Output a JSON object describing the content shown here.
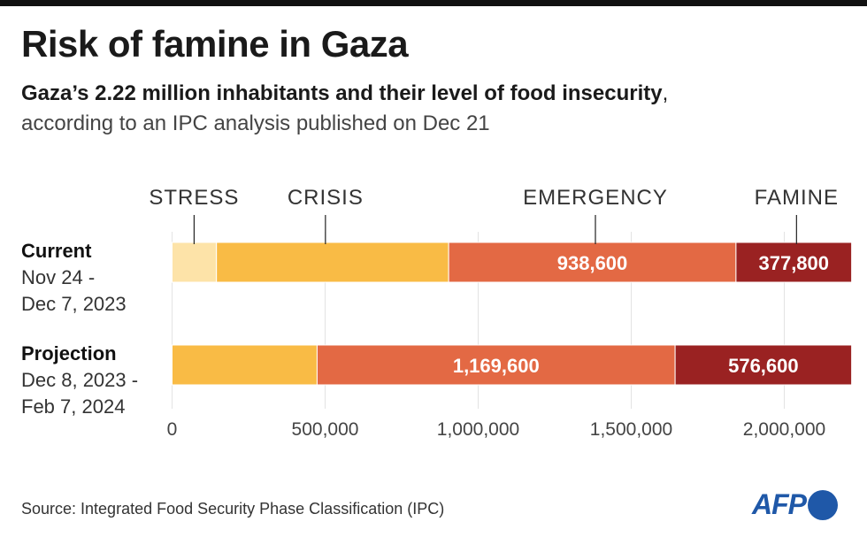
{
  "title": "Risk of famine in Gaza",
  "subtitle_bold": "Gaza’s 2.22 million inhabitants and their level of food insecurity",
  "subtitle_rest": ",",
  "subtitle_line2": "according to an IPC analysis published on Dec 21",
  "source": "Source: Integrated Food Security Phase Classification (IPC)",
  "logo_text": "AFP",
  "colors": {
    "stress": "#fde3a8",
    "crisis": "#f9bb45",
    "emergency": "#e36944",
    "famine": "#9a2222",
    "grid": "#e3e3e3"
  },
  "chart_data": {
    "type": "bar",
    "orientation": "horizontal",
    "stacked": true,
    "categories": [
      {
        "name": "Current",
        "dates_line1": "Nov 24 -",
        "dates_line2": "Dec 7, 2023"
      },
      {
        "name": "Projection",
        "dates_line1": "Dec 8, 2023 -",
        "dates_line2": "Feb 7, 2024"
      }
    ],
    "series": [
      {
        "name": "STRESS",
        "values": [
          145000,
          0
        ],
        "labels": [
          "",
          ""
        ]
      },
      {
        "name": "CRISIS",
        "values": [
          758600,
          473800
        ],
        "labels": [
          "",
          ""
        ]
      },
      {
        "name": "EMERGENCY",
        "values": [
          938600,
          1169600
        ],
        "labels": [
          "938,600",
          "1,169,600"
        ]
      },
      {
        "name": "FAMINE",
        "values": [
          377800,
          576600
        ],
        "labels": [
          "377,800",
          "576,600"
        ]
      }
    ],
    "xlim": [
      0,
      2220000
    ],
    "xticks": [
      0,
      500000,
      1000000,
      1500000,
      2000000
    ],
    "xtick_labels": [
      "0",
      "500,000",
      "1,000,000",
      "1,500,000",
      "2,000,000"
    ],
    "grid": true,
    "legend": "top, labels with leader lines"
  }
}
